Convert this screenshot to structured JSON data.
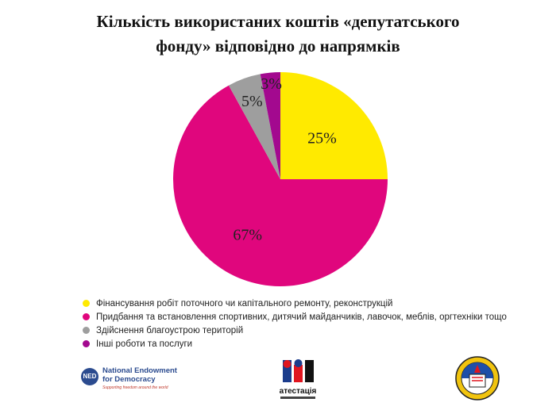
{
  "chart_data": {
    "type": "pie",
    "title_lines": [
      "Кількість використаних коштів «депутатського",
      "фонду» відповідно до напрямків"
    ],
    "slices": [
      {
        "label": "Фінансування робіт поточного чи капітального ремонту, реконструкцій",
        "value": 25,
        "display": "25%",
        "color": "#FFEA00"
      },
      {
        "label": "Придбання та встановлення спортивних, дитячий майданчиків, лавочок, меблів, оргтехніки тощо",
        "value": 67,
        "display": "67%",
        "color": "#E0067D"
      },
      {
        "label": "Здійснення благоустрою територій",
        "value": 5,
        "display": "5%",
        "color": "#9E9E9E"
      },
      {
        "label": "Інші роботи та послуги",
        "value": 3,
        "display": "3%",
        "color": "#A3098F"
      }
    ],
    "legend_position": "bottom-left"
  },
  "logos": {
    "ned": {
      "abbr": "NED",
      "line1": "National Endowment",
      "line2": "for Democracy",
      "tagline": "Supporting freedom around the world"
    },
    "atestatsiia": {
      "name": "атестація"
    }
  }
}
